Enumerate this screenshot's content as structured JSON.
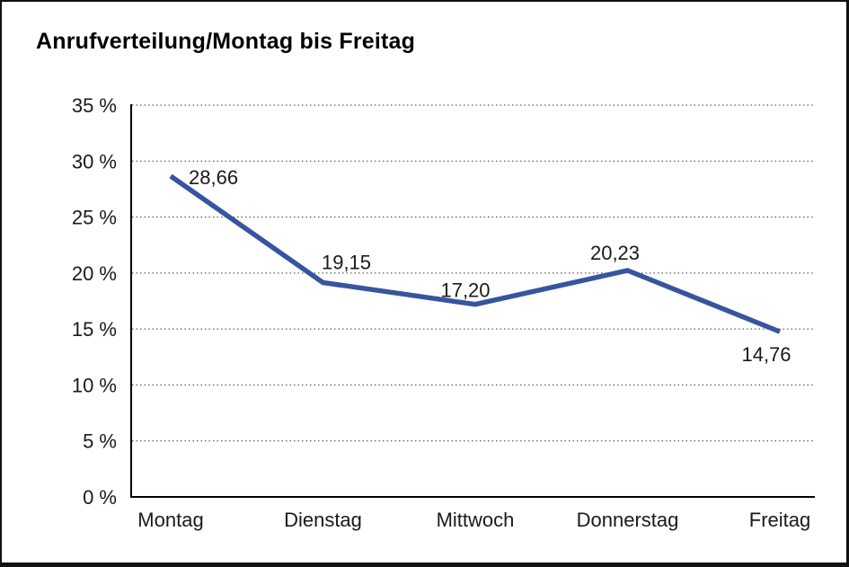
{
  "chart_data": {
    "type": "line",
    "title": "Anrufverteilung/Montag bis Freitag",
    "categories": [
      "Montag",
      "Dienstag",
      "Mittwoch",
      "Donnerstag",
      "Freitag"
    ],
    "series": [
      {
        "name": "Anrufverteilung",
        "values": [
          28.66,
          19.15,
          17.2,
          20.23,
          14.76
        ],
        "value_labels": [
          "28,66",
          "19,15",
          "17,20",
          "20,23",
          "14,76"
        ]
      }
    ],
    "xlabel": "",
    "ylabel": "",
    "ylim": [
      0,
      35
    ],
    "y_step": 5,
    "y_tick_labels": [
      "35 %",
      "30 %",
      "25 %",
      "20 %",
      "15 %",
      "10 %",
      "5 %",
      "0 %"
    ],
    "grid": "horizontal-dotted",
    "legend": "none",
    "line_color": "#37559F",
    "axis_color": "#000000",
    "text_color": "#1a1a1a",
    "gridline_color": "#3a3a3a"
  }
}
